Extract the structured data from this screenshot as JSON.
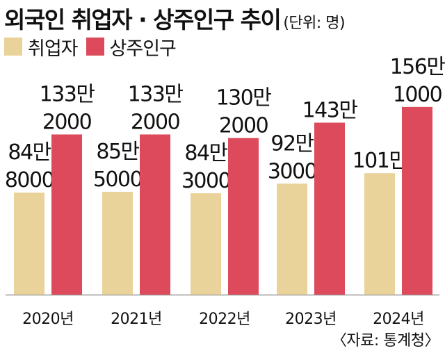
{
  "title": "외국인 취업자 · 상주인구 추이",
  "unit_note": "(단위: 명)",
  "source": "〈자료: 통계청〉",
  "colors": {
    "employed": "#ead39a",
    "resident": "#dc4a5c",
    "axis": "#999999"
  },
  "legend": [
    {
      "key": "employed",
      "label": "취업자"
    },
    {
      "key": "resident",
      "label": "상주인구"
    }
  ],
  "chart_data": {
    "type": "bar",
    "categories": [
      "2020년",
      "2021년",
      "2022년",
      "2023년",
      "2024년"
    ],
    "series": [
      {
        "key": "employed",
        "name": "취업자",
        "values": [
          848000,
          855000,
          843000,
          923000,
          1010000
        ],
        "labels": [
          [
            "84만",
            "8000"
          ],
          [
            "85만",
            "5000"
          ],
          [
            "84만",
            "3000"
          ],
          [
            "92만",
            "3000"
          ],
          [
            "101만"
          ]
        ]
      },
      {
        "key": "resident",
        "name": "상주인구",
        "values": [
          1332000,
          1332000,
          1302000,
          1430000,
          1561000
        ],
        "labels": [
          [
            "133만",
            "2000"
          ],
          [
            "133만",
            "2000"
          ],
          [
            "130만",
            "2000"
          ],
          [
            "143만"
          ],
          [
            "156만",
            "1000"
          ]
        ]
      }
    ],
    "ylim": [
      0,
      2450000
    ],
    "legend_position": "top-left",
    "grid": false
  }
}
